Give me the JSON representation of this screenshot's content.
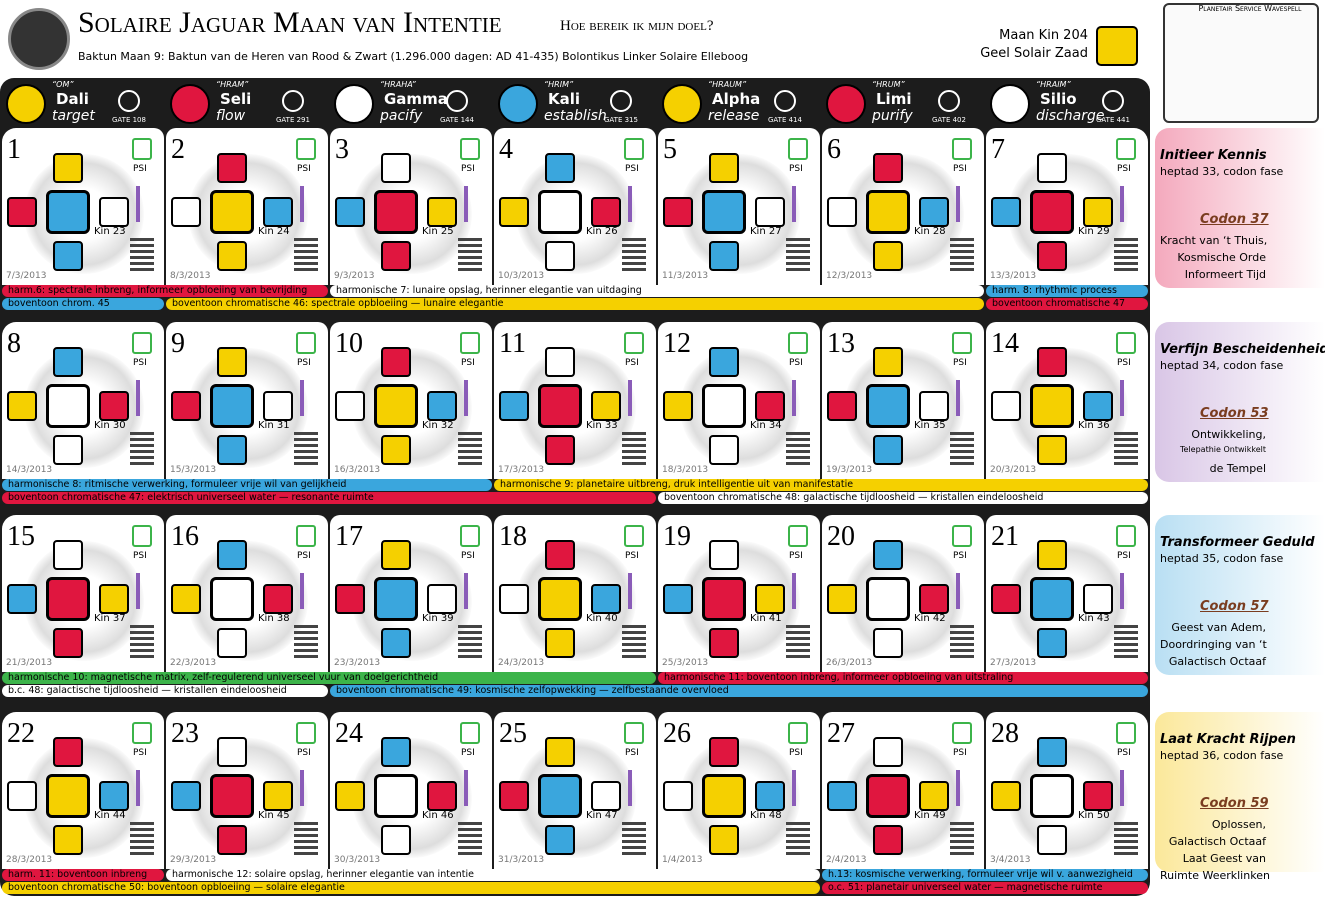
{
  "header": {
    "title": "Solaire Jaguar Maan van Intentie",
    "subtitle": "Hoe bereik ik mijn doel?",
    "baktun": "Baktun Maan 9: Baktun van de Heren van Rood & Zwart (1.296.000 dagen: AD 41-435) Bolontikus Linker Solaire Elleboog",
    "moon_kin": "Maan Kin 204",
    "moon_seal": "Geel Solair Zaad",
    "wavespell": "Planetair Service Wavespell"
  },
  "psi_label": "PSI",
  "days": [
    {
      "mantra": "“OM”",
      "name": "Dali",
      "action": "target",
      "gate": "GATE 108",
      "color": "#f5d000"
    },
    {
      "mantra": "“HRAM”",
      "name": "Seli",
      "action": "flow",
      "gate": "GATE 291",
      "color": "#e0163f"
    },
    {
      "mantra": "“HRAHA”",
      "name": "Gamma",
      "action": "pacify",
      "gate": "GATE 144",
      "color": "#ffffff"
    },
    {
      "mantra": "“HRIM”",
      "name": "Kali",
      "action": "establish",
      "gate": "GATE 315",
      "color": "#3aa6dd"
    },
    {
      "mantra": "“HRAUM”",
      "name": "Alpha",
      "action": "release",
      "gate": "GATE 414",
      "color": "#f5d000"
    },
    {
      "mantra": "“HRUM”",
      "name": "Limi",
      "action": "purify",
      "gate": "GATE 402",
      "color": "#e0163f"
    },
    {
      "mantra": "“HRAIM”",
      "name": "Silio",
      "action": "discharge",
      "gate": "GATE 441",
      "color": "#ffffff"
    }
  ],
  "weeks": [
    {
      "days": [
        {
          "number": 1,
          "kin": "Kin 23",
          "date": "7/3/2013"
        },
        {
          "number": 2,
          "kin": "Kin 24",
          "date": "8/3/2013"
        },
        {
          "number": 3,
          "kin": "Kin 25",
          "date": "9/3/2013"
        },
        {
          "number": 4,
          "kin": "Kin 26",
          "date": "10/3/2013"
        },
        {
          "number": 5,
          "kin": "Kin 27",
          "date": "11/3/2013"
        },
        {
          "number": 6,
          "kin": "Kin 28",
          "date": "12/3/2013"
        },
        {
          "number": 7,
          "kin": "Kin 29",
          "date": "13/3/2013"
        }
      ],
      "bars": [
        [
          {
            "text": "harm.6: spectrale inbreng, informeer opbloeiing van bevrijding",
            "color": "#e0163f"
          },
          {
            "text": "harmonische 7: lunaire opslag, herinner elegantie van uitdaging",
            "color": "#ffffff"
          },
          {
            "text": "harm. 8: rhythmic process",
            "color": "#3aa6dd"
          }
        ],
        [
          {
            "text": "boventoon chrom. 45",
            "color": "#3aa6dd"
          },
          {
            "text": "boventoon chromatische 46: spectrale opbloeiing — lunaire elegantie",
            "color": "#f5d000"
          },
          {
            "text": "boventoon chromatische 47",
            "color": "#e0163f"
          }
        ]
      ],
      "panel": {
        "title": "Initieer Kennis",
        "heptad": "heptad 33, codon fase",
        "codon": "Codon 37",
        "lines": [
          "Kracht van ‘t Thuis,",
          "Kosmische Orde",
          "Informeert Tijd"
        ],
        "color": "#f4a9bd"
      }
    },
    {
      "days": [
        {
          "number": 8,
          "kin": "Kin 30",
          "date": "14/3/2013"
        },
        {
          "number": 9,
          "kin": "Kin 31",
          "date": "15/3/2013"
        },
        {
          "number": 10,
          "kin": "Kin 32",
          "date": "16/3/2013"
        },
        {
          "number": 11,
          "kin": "Kin 33",
          "date": "17/3/2013"
        },
        {
          "number": 12,
          "kin": "Kin 34",
          "date": "18/3/2013"
        },
        {
          "number": 13,
          "kin": "Kin 35",
          "date": "19/3/2013"
        },
        {
          "number": 14,
          "kin": "Kin 36",
          "date": "20/3/2013"
        }
      ],
      "bars": [
        [
          {
            "text": "harmonische 8: ritmische verwerking, formuleer vrije wil van gelijkheid",
            "color": "#3aa6dd"
          },
          {
            "text": "harmonische 9: planetaire uitbreng, druk intelligentie uit van manifestatie",
            "color": "#f5d000"
          }
        ],
        [
          {
            "text": "boventoon chromatische 47: elektrisch universeel water — resonante ruimte",
            "color": "#e0163f"
          },
          {
            "text": "boventoon chromatische 48: galactische tijdloosheid — kristallen eindeloosheid",
            "color": "#ffffff"
          }
        ]
      ],
      "panel": {
        "title": "Verfijn Bescheidenheid",
        "heptad": "heptad 34, codon fase",
        "codon": "Codon 53",
        "lines": [
          "Ontwikkeling,",
          "Telepathie Ontwikkelt",
          "de Tempel"
        ],
        "color": "#d9c6e6"
      }
    },
    {
      "days": [
        {
          "number": 15,
          "kin": "Kin 37",
          "date": "21/3/2013"
        },
        {
          "number": 16,
          "kin": "Kin 38",
          "date": "22/3/2013"
        },
        {
          "number": 17,
          "kin": "Kin 39",
          "date": "23/3/2013"
        },
        {
          "number": 18,
          "kin": "Kin 40",
          "date": "24/3/2013"
        },
        {
          "number": 19,
          "kin": "Kin 41",
          "date": "25/3/2013"
        },
        {
          "number": 20,
          "kin": "Kin 42",
          "date": "26/3/2013"
        },
        {
          "number": 21,
          "kin": "Kin 43",
          "date": "27/3/2013"
        }
      ],
      "bars": [
        [
          {
            "text": "harmonische 10: magnetische matrix, zelf-regulerend universeel vuur van doelgerichtheid",
            "color": "#3cb44a"
          },
          {
            "text": "harmonische 11: boventoon inbreng, informeer opbloeiing van uitstraling",
            "color": "#e0163f"
          }
        ],
        [
          {
            "text": "b.c. 48: galactische tijdloosheid — kristallen eindeloosheid",
            "color": "#ffffff"
          },
          {
            "text": "boventoon chromatische 49: kosmische zelfopwekking — zelfbestaande overvloed",
            "color": "#3aa6dd"
          }
        ]
      ],
      "panel": {
        "title": "Transformeer Geduld",
        "heptad": "heptad 35, codon fase",
        "codon": "Codon 57",
        "lines": [
          "Geest van Adem,",
          "Doordringing van ‘t",
          "Galactisch Octaaf"
        ],
        "color": "#b9dff3"
      }
    },
    {
      "days": [
        {
          "number": 22,
          "kin": "Kin 44",
          "date": "28/3/2013"
        },
        {
          "number": 23,
          "kin": "Kin 45",
          "date": "29/3/2013"
        },
        {
          "number": 24,
          "kin": "Kin 46",
          "date": "30/3/2013"
        },
        {
          "number": 25,
          "kin": "Kin 47",
          "date": "31/3/2013"
        },
        {
          "number": 26,
          "kin": "Kin 48",
          "date": "1/4/2013"
        },
        {
          "number": 27,
          "kin": "Kin 49",
          "date": "2/4/2013"
        },
        {
          "number": 28,
          "kin": "Kin 50",
          "date": "3/4/2013"
        }
      ],
      "bars": [
        [
          {
            "text": "harm. 11: boventoon inbreng",
            "color": "#e0163f"
          },
          {
            "text": "harmonische 12: solaire opslag, herinner elegantie van intentie",
            "color": "#ffffff"
          },
          {
            "text": "h.13: kosmische verwerking, formuleer vrije wil v. aanwezigheid",
            "color": "#3aa6dd"
          }
        ],
        [
          {
            "text": "boventoon chromatische 50: boventoon opbloeiing — solaire elegantie",
            "color": "#f5d000"
          },
          {
            "text": "o.c. 51: planetair universeel water — magnetische ruimte",
            "color": "#e0163f"
          }
        ]
      ],
      "panel": {
        "title": "Laat Kracht Rijpen",
        "heptad": "heptad 36, codon fase",
        "codon": "Codon 59",
        "lines": [
          "Oplossen,",
          "Galactisch Octaaf",
          "Laat Geest van",
          "Ruimte Weerklinken"
        ],
        "color": "#fbe89a"
      }
    }
  ]
}
